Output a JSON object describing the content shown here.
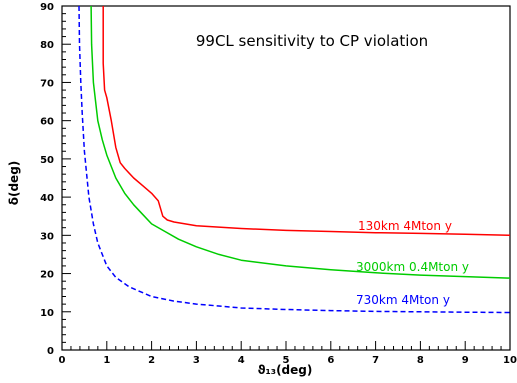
{
  "chart_data": {
    "type": "line",
    "title": "99CL sensitivity to CP violation",
    "xlabel": "ϑ₁₃(deg)",
    "ylabel": "δ(deg)",
    "xlim": [
      0,
      10
    ],
    "ylim": [
      0,
      90
    ],
    "x_ticks": [
      0,
      1,
      2,
      3,
      4,
      5,
      6,
      7,
      8,
      9,
      10
    ],
    "y_ticks": [
      0,
      10,
      20,
      30,
      40,
      50,
      60,
      70,
      80,
      90
    ],
    "grid": false,
    "legend": "inline labels at right",
    "series": [
      {
        "name": "130km 4Mton y",
        "color": "#ff0000",
        "style": "solid",
        "x": [
          0.92,
          0.92,
          0.95,
          1.0,
          1.1,
          1.2,
          1.3,
          1.4,
          1.6,
          1.8,
          2.0,
          2.15,
          2.25,
          2.35,
          2.5,
          3.0,
          4.0,
          5.0,
          6.0,
          7.0,
          8.0,
          9.0,
          10.0
        ],
        "y": [
          90,
          75,
          68,
          66,
          60,
          53,
          49,
          47.5,
          45,
          43,
          41,
          39,
          35,
          34,
          33.5,
          32.5,
          31.8,
          31.3,
          31,
          30.7,
          30.5,
          30.3,
          30
        ]
      },
      {
        "name": "3000km 0.4Mton y",
        "color": "#00cc00",
        "style": "solid",
        "x": [
          0.65,
          0.66,
          0.7,
          0.8,
          0.9,
          1.0,
          1.2,
          1.4,
          1.6,
          1.8,
          2.0,
          2.3,
          2.6,
          3.0,
          3.5,
          4.0,
          5.0,
          6.0,
          7.0,
          8.0,
          9.0,
          10.0
        ],
        "y": [
          90,
          80,
          70,
          60,
          55,
          51,
          45,
          41,
          38,
          35.5,
          33,
          31,
          29,
          27,
          25,
          23.5,
          22,
          21,
          20.2,
          19.6,
          19.2,
          18.8
        ]
      },
      {
        "name": "730km 4Mton y",
        "color": "#0000ff",
        "style": "dashed",
        "x": [
          0.38,
          0.39,
          0.42,
          0.45,
          0.5,
          0.6,
          0.7,
          0.8,
          1.0,
          1.2,
          1.5,
          2.0,
          2.5,
          3.0,
          3.5,
          4.0,
          5.0,
          6.0,
          7.0,
          8.0,
          9.0,
          10.0
        ],
        "y": [
          90,
          80,
          70,
          62,
          52,
          40,
          33,
          28,
          22,
          19,
          16.5,
          14,
          12.8,
          12,
          11.5,
          11,
          10.6,
          10.3,
          10.1,
          10,
          9.9,
          9.8
        ]
      }
    ]
  }
}
